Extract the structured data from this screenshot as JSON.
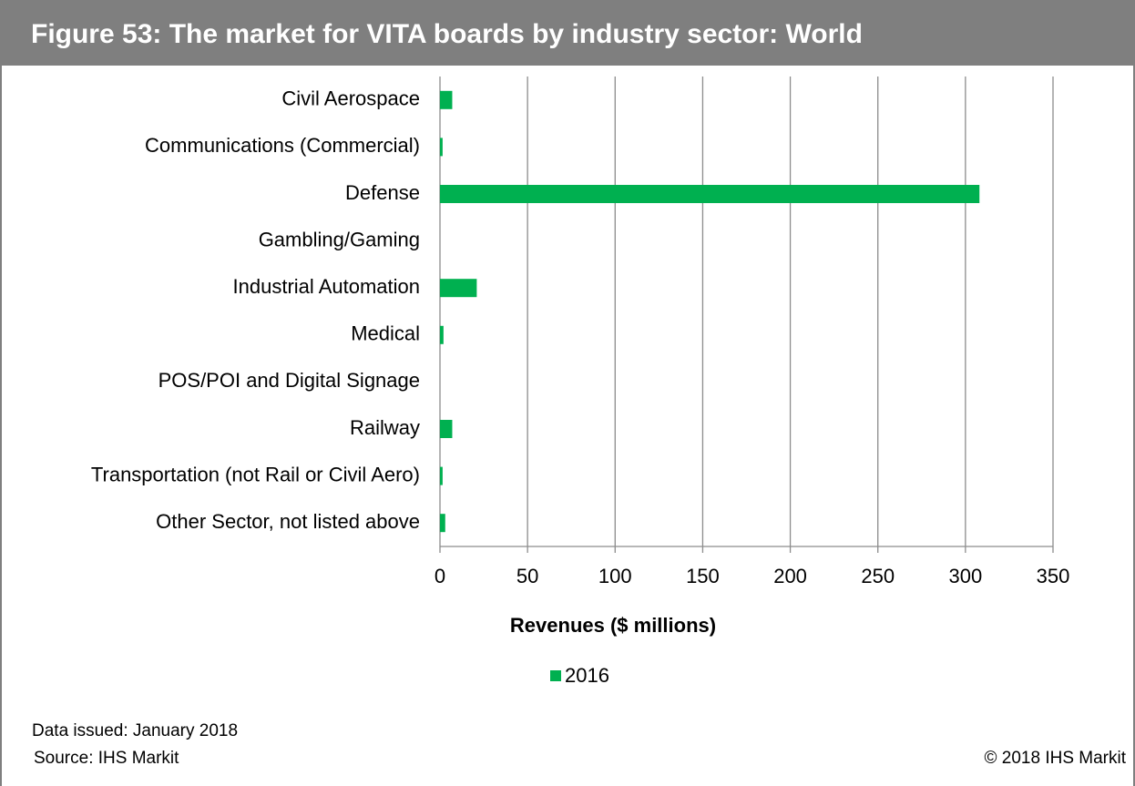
{
  "chart_data": {
    "type": "bar",
    "orientation": "horizontal",
    "title": "Figure 53: The market for VITA boards by industry sector: World",
    "x_label": "Revenues ($ millions)",
    "categories": [
      "Civil Aerospace",
      "Communications (Commercial)",
      "Defense",
      "Gambling/Gaming",
      "Industrial Automation",
      "Medical",
      "POS/POI and Digital Signage",
      "Railway",
      "Transportation (not Rail or Civil Aero)",
      "Other Sector, not listed above"
    ],
    "series": [
      {
        "name": "2016",
        "color": "#00b050",
        "values": [
          7,
          1.5,
          308,
          0,
          21,
          2,
          0,
          7,
          1.5,
          3
        ]
      }
    ],
    "xlim": [
      0,
      350
    ],
    "xticks": [
      0,
      50,
      100,
      150,
      200,
      250,
      300,
      350
    ],
    "grid": true,
    "data_issued": "Data issued: January 2018",
    "source": "Source: IHS Markit",
    "copyright": "© 2018 IHS Markit"
  }
}
